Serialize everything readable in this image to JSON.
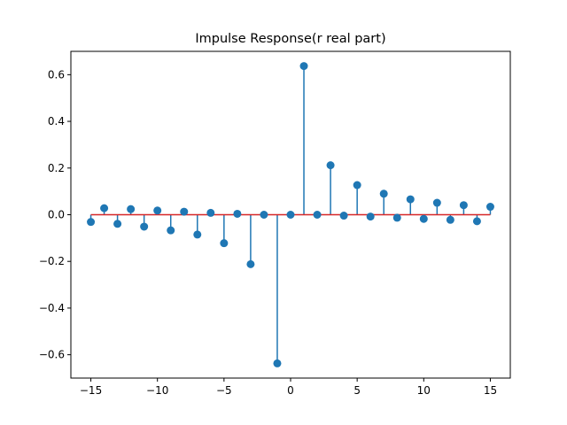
{
  "chart_data": {
    "type": "stem",
    "title": "Impulse Response(r real part)",
    "xlabel": "",
    "ylabel": "",
    "xlim": [
      -16.5,
      16.5
    ],
    "ylim": [
      -0.7,
      0.7
    ],
    "xticks": [
      -15,
      -10,
      -5,
      0,
      5,
      10,
      15
    ],
    "xtick_labels": [
      "−15",
      "−10",
      "−5",
      "0",
      "5",
      "10",
      "15"
    ],
    "yticks": [
      -0.6,
      -0.4,
      -0.2,
      0.0,
      0.2,
      0.4,
      0.6
    ],
    "ytick_labels": [
      "−0.6",
      "−0.4",
      "−0.2",
      "0.0",
      "0.2",
      "0.4",
      "0.6"
    ],
    "grid": false,
    "colors": {
      "stem": "#1f77b4",
      "marker": "#1f77b4",
      "baseline": "#d62728"
    },
    "x": [
      -15,
      -14,
      -13,
      -12,
      -11,
      -10,
      -9,
      -8,
      -7,
      -6,
      -5,
      -4,
      -3,
      -2,
      -1,
      0,
      1,
      2,
      3,
      4,
      5,
      6,
      7,
      8,
      9,
      10,
      11,
      12,
      13,
      14,
      15
    ],
    "values": [
      -0.031,
      0.028,
      -0.039,
      0.024,
      -0.051,
      0.018,
      -0.067,
      0.013,
      -0.085,
      0.008,
      -0.122,
      0.004,
      -0.212,
      0.0,
      -0.637,
      0.0,
      0.637,
      0.0,
      0.212,
      -0.004,
      0.127,
      -0.008,
      0.09,
      -0.013,
      0.066,
      -0.018,
      0.051,
      -0.022,
      0.041,
      -0.028,
      0.034
    ]
  }
}
